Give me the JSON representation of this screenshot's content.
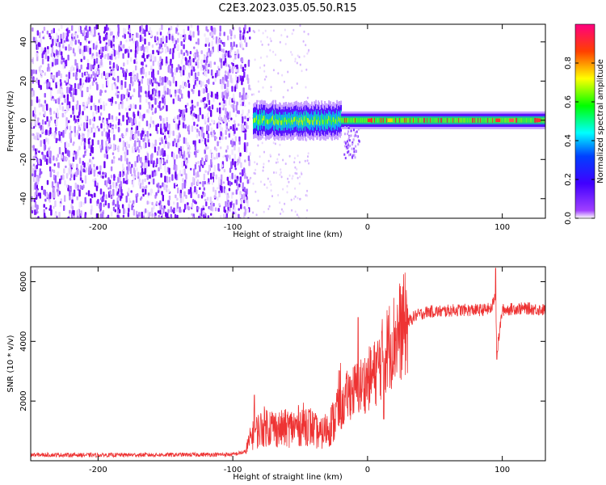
{
  "title": "C2E3.2023.035.05.50.R15",
  "chart_data": [
    {
      "type": "heatmap",
      "xlabel": "Height of straight line (km)",
      "ylabel": "Frequency (Hz)",
      "xlim": [
        -250,
        132
      ],
      "ylim": [
        -50,
        49
      ],
      "x_ticks": [
        -200,
        -100,
        0,
        100
      ],
      "y_ticks": [
        -40,
        -20,
        0,
        20,
        40
      ],
      "colorbar": {
        "label": "Normalized spectral amplitude",
        "range": [
          0,
          1
        ],
        "ticks": [
          0.0,
          0.2,
          0.4,
          0.6,
          0.8
        ],
        "colors": [
          "#ffffff",
          "#8000ff",
          "#0000ff",
          "#00ffff",
          "#00ff00",
          "#ffff00",
          "#ff0000",
          "#ff0080"
        ]
      },
      "regions": {
        "noise_only": [
          -250,
          -88
        ],
        "scattered_edge": [
          -88,
          -80
        ],
        "signal_band": [
          -85,
          132
        ],
        "signal_center_hz": 0,
        "signal_halfwidth_hz": 5
      },
      "grid": false
    },
    {
      "type": "line",
      "xlabel": "Height of straight line (km)",
      "ylabel": "SNR (10 * v/v)",
      "xlim": [
        -250,
        132
      ],
      "ylim": [
        0,
        6500
      ],
      "x_ticks": [
        -200,
        -100,
        0,
        100
      ],
      "y_ticks": [
        2000,
        4000,
        6000
      ],
      "color": "#ee3333",
      "series": [
        {
          "x": [
            -250,
            -200,
            -150,
            -100,
            -90,
            -85,
            -75,
            -65,
            -55,
            -45,
            -35,
            -25,
            -15,
            -5,
            5,
            15,
            25,
            35,
            45,
            55,
            65,
            75,
            85,
            92,
            95,
            96,
            100,
            110,
            120,
            132
          ],
          "values": [
            200,
            190,
            200,
            210,
            300,
            700,
            900,
            800,
            850,
            950,
            650,
            1000,
            2200,
            2500,
            2900,
            3800,
            4400,
            4850,
            5000,
            5000,
            5050,
            5050,
            5050,
            5100,
            5600,
            3600,
            5050,
            5100,
            5100,
            5050
          ]
        }
      ],
      "spikes": [
        {
          "x": -84,
          "y": 2200
        },
        {
          "x": -7,
          "y": 4800
        },
        {
          "x": 12,
          "y": 1400
        },
        {
          "x": 95,
          "y": 6450
        },
        {
          "x": 96,
          "y": 3400
        }
      ],
      "grid": false
    }
  ]
}
